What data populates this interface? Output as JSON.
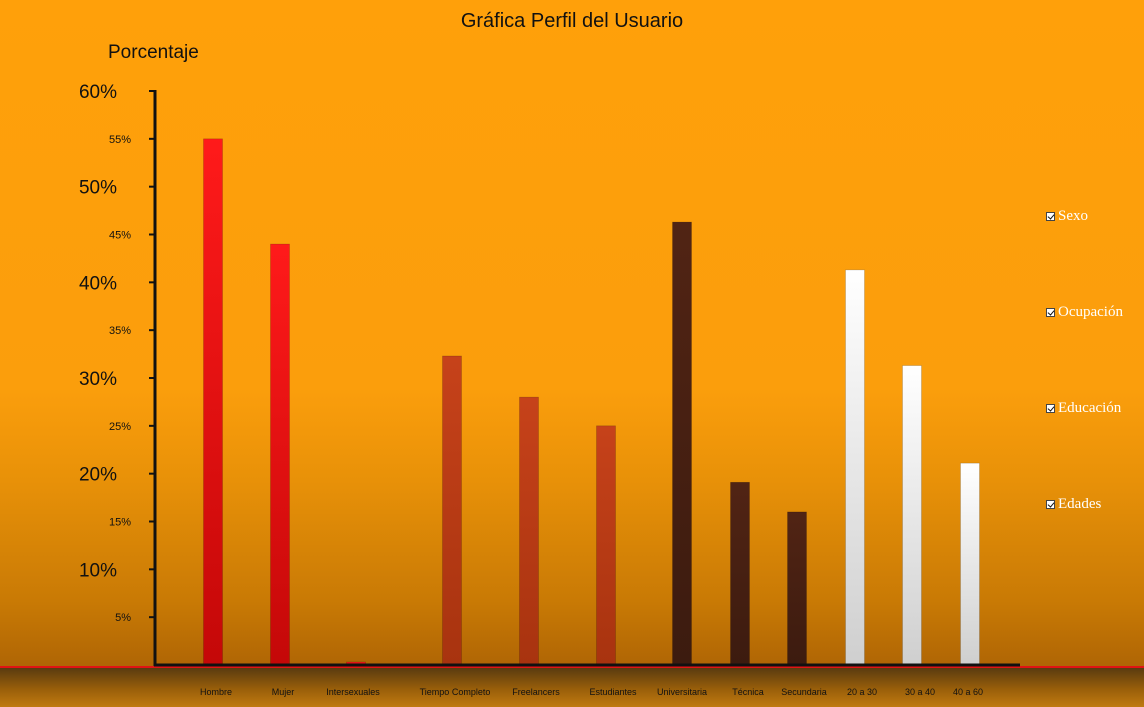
{
  "page": {
    "title": "Gráfica Perfil del Usuario",
    "ylabel": "Porcentaje"
  },
  "legend": [
    {
      "label": "Sexo",
      "checked": true
    },
    {
      "label": "Ocupación",
      "checked": true
    },
    {
      "label": "Educación",
      "checked": true
    },
    {
      "label": "Edades",
      "checked": true
    }
  ],
  "chart_data": {
    "type": "bar",
    "title": "Gráfica Perfil del Usuario",
    "ylabel": "Porcentaje",
    "xlabel": "",
    "ylim": [
      0,
      60
    ],
    "yticks_major": [
      "60%",
      "50%",
      "40%",
      "30%",
      "20%",
      "10%"
    ],
    "yticks_minor": [
      "55%",
      "45%",
      "35%",
      "25%",
      "15%",
      "5%"
    ],
    "categories": [
      "Hombre",
      "Mujer",
      "Intersexuales",
      "Tiempo Completo",
      "Freelancers",
      "Estudiantes",
      "Universitaria",
      "Técnica",
      "Secundaria",
      "20 a 30",
      "30 a 40",
      "40 a 60"
    ],
    "values": [
      55,
      44,
      0.3,
      32.3,
      28,
      25,
      46.3,
      19.1,
      16,
      41.3,
      31.3,
      21.1
    ],
    "groups": [
      "Sexo",
      "Sexo",
      "Sexo",
      "Ocupación",
      "Ocupación",
      "Ocupación",
      "Educación",
      "Educación",
      "Educación",
      "Edades",
      "Edades",
      "Edades"
    ],
    "colors": {
      "Sexo": [
        "#ff1a1a",
        "#c40808"
      ],
      "Ocupación": [
        "#c6421a",
        "#a8330f"
      ],
      "Educación": [
        "#512414",
        "#3c1b0f"
      ],
      "Edades": [
        "#ffffff",
        "#cfcfcf"
      ]
    },
    "grid": false
  }
}
